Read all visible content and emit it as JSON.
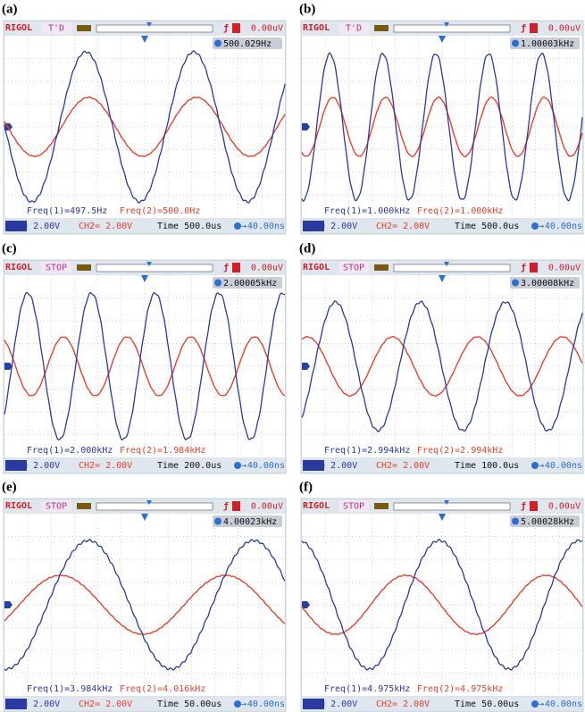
{
  "panels": [
    {
      "label": "(a)",
      "brand": "RIGOL",
      "status": "T'D",
      "trigger": "0.00uV",
      "counter": "500.029Hz",
      "freq1": "Freq(1)=497.5Hz",
      "freq2": "Freq(2)=500.0Hz",
      "ch1": "CH1= 2.00V",
      "ch2": "CH2= 2.00V",
      "time": "Time 500.0us",
      "offset": "-40.00ns"
    },
    {
      "label": "(b)",
      "brand": "RIGOL",
      "status": "T'D",
      "trigger": "0.00uV",
      "counter": "1.00003kHz",
      "freq1": "Freq(1)=1.000kHz",
      "freq2": "Freq(2)=1.000kHz",
      "ch1": "CH1= 2.00V",
      "ch2": "CH2= 2.00V",
      "time": "Time 500.0us",
      "offset": "-40.00ns"
    },
    {
      "label": "(c)",
      "brand": "RIGOL",
      "status": "STOP",
      "trigger": "0.00uV",
      "counter": "2.00005kHz",
      "freq1": "Freq(1)=2.000kHz",
      "freq2": "Freq(2)=1.984kHz",
      "ch1": "CH1= 2.00V",
      "ch2": "CH2= 2.00V",
      "time": "Time 200.0us",
      "offset": "-40.00ns"
    },
    {
      "label": "(d)",
      "brand": "RIGOL",
      "status": "STOP",
      "trigger": "0.00uV",
      "counter": "3.00008kHz",
      "freq1": "Freq(1)=2.994kHz",
      "freq2": "Freq(2)=2.994kHz",
      "ch1": "CH1= 2.00V",
      "ch2": "CH2= 2.00V",
      "time": "Time 100.0us",
      "offset": "-40.00ns"
    },
    {
      "label": "(e)",
      "brand": "RIGOL",
      "status": "STOP",
      "trigger": "0.00uV",
      "counter": "4.00023kHz",
      "freq1": "Freq(1)=3.984kHz",
      "freq2": "Freq(2)=4.016kHz",
      "ch1": "CH1= 2.00V",
      "ch2": "CH2= 2.00V",
      "time": "Time 50.00us",
      "offset": "-40.00ns"
    },
    {
      "label": "(f)",
      "brand": "RIGOL",
      "status": "STOP",
      "trigger": "0.00uV",
      "counter": "5.00028kHz",
      "freq1": "Freq(1)=4.975kHz",
      "freq2": "Freq(2)=4.975kHz",
      "ch1": "CH1= 2.00V",
      "ch2": "CH2= 2.00V",
      "time": "Time 50.00us",
      "offset": "-40.00ns"
    }
  ]
}
